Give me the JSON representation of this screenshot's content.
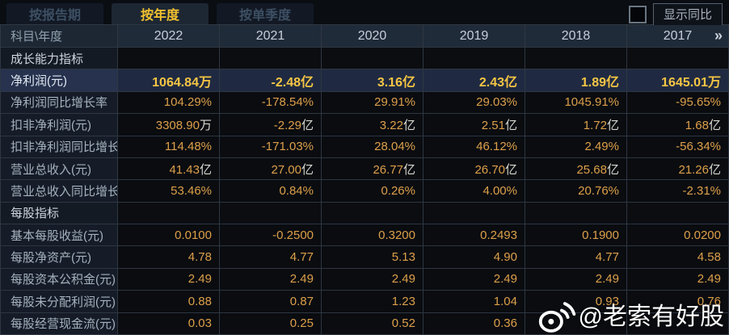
{
  "tabs": [
    {
      "label": "按报告期",
      "active": false
    },
    {
      "label": "按年度",
      "active": true
    },
    {
      "label": "按单季度",
      "active": false
    }
  ],
  "controls": {
    "show_yoy_label": "显示同比",
    "checkbox_checked": false
  },
  "table": {
    "corner_label": "科目\\年度",
    "years": [
      "2022",
      "2021",
      "2020",
      "2019",
      "2018",
      "2017"
    ],
    "more_icon": "»",
    "rows": [
      {
        "type": "section",
        "label": "成长能力指标"
      },
      {
        "type": "data",
        "label": "净利润(元)",
        "highlight": true,
        "cells": [
          [
            "1064.84",
            "万"
          ],
          [
            "-2.48",
            "亿"
          ],
          [
            "3.16",
            "亿"
          ],
          [
            "2.43",
            "亿"
          ],
          [
            "1.89",
            "亿"
          ],
          [
            "1645.01",
            "万"
          ]
        ]
      },
      {
        "type": "data",
        "label": "净利润同比增长率",
        "cells": [
          [
            "104.29%"
          ],
          [
            "-178.54%"
          ],
          [
            "29.91%"
          ],
          [
            "29.03%"
          ],
          [
            "1045.91%"
          ],
          [
            "-95.65%"
          ]
        ]
      },
      {
        "type": "data",
        "label": "扣非净利润(元)",
        "cells": [
          [
            "3308.90",
            "万"
          ],
          [
            "-2.29",
            "亿"
          ],
          [
            "3.22",
            "亿"
          ],
          [
            "2.51",
            "亿"
          ],
          [
            "1.72",
            "亿"
          ],
          [
            "1.68",
            "亿"
          ]
        ]
      },
      {
        "type": "data",
        "label": "扣非净利润同比增长率",
        "cells": [
          [
            "114.48%"
          ],
          [
            "-171.03%"
          ],
          [
            "28.04%"
          ],
          [
            "46.12%"
          ],
          [
            "2.49%"
          ],
          [
            "-56.34%"
          ]
        ]
      },
      {
        "type": "data",
        "label": "营业总收入(元)",
        "cells": [
          [
            "41.43",
            "亿"
          ],
          [
            "27.00",
            "亿"
          ],
          [
            "26.77",
            "亿"
          ],
          [
            "26.70",
            "亿"
          ],
          [
            "25.68",
            "亿"
          ],
          [
            "21.26",
            "亿"
          ]
        ]
      },
      {
        "type": "data",
        "label": "营业总收入同比增长率",
        "cells": [
          [
            "53.46%"
          ],
          [
            "0.84%"
          ],
          [
            "0.26%"
          ],
          [
            "4.00%"
          ],
          [
            "20.76%"
          ],
          [
            "-2.31%"
          ]
        ]
      },
      {
        "type": "section",
        "label": "每股指标"
      },
      {
        "type": "data",
        "label": "基本每股收益(元)",
        "cells": [
          [
            "0.0100"
          ],
          [
            "-0.2500"
          ],
          [
            "0.3200"
          ],
          [
            "0.2493"
          ],
          [
            "0.1900"
          ],
          [
            "0.0200"
          ]
        ]
      },
      {
        "type": "data",
        "label": "每股净资产(元)",
        "cells": [
          [
            "4.78"
          ],
          [
            "4.77"
          ],
          [
            "5.13"
          ],
          [
            "4.90"
          ],
          [
            "4.77"
          ],
          [
            "4.58"
          ]
        ]
      },
      {
        "type": "data",
        "label": "每股资本公积金(元)",
        "cells": [
          [
            "2.49"
          ],
          [
            "2.49"
          ],
          [
            "2.49"
          ],
          [
            "2.49"
          ],
          [
            "2.49"
          ],
          [
            "2.49"
          ]
        ]
      },
      {
        "type": "data",
        "label": "每股未分配利润(元)",
        "cells": [
          [
            "0.88"
          ],
          [
            "0.87"
          ],
          [
            "1.23"
          ],
          [
            "1.04"
          ],
          [
            "0.93"
          ],
          [
            "0.76"
          ]
        ]
      },
      {
        "type": "data",
        "label": "每股经营现金流(元)",
        "cells": [
          [
            "0.03"
          ],
          [
            "0.25"
          ],
          [
            "0.52"
          ],
          [
            "0.36"
          ],
          [
            ""
          ],
          [
            ""
          ]
        ]
      }
    ]
  },
  "watermark": {
    "text": "@老索有好股",
    "logo": "weibo-eye-icon"
  },
  "colors": {
    "accent_gold": "#f2c230",
    "value_gold": "#dda04a",
    "highlight_row_bg": "#22304c",
    "header_bg": "#202b39",
    "page_bg": "#0a0d12"
  }
}
